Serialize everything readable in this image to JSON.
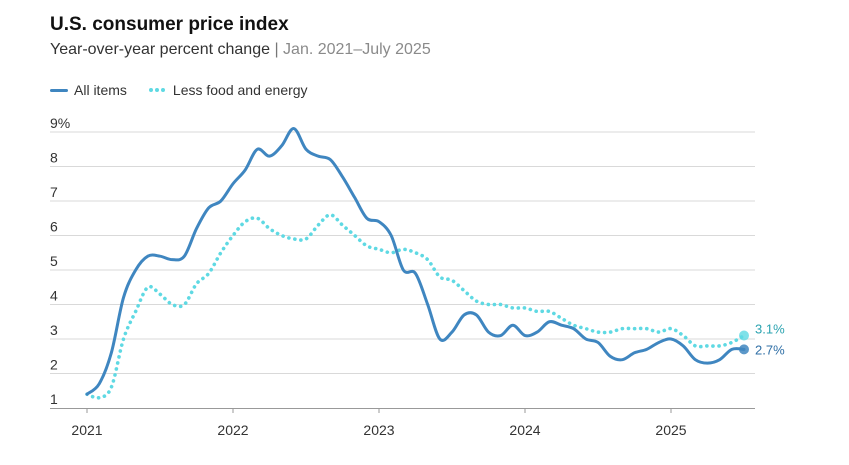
{
  "header": {
    "title": "U.S. consumer price index",
    "subtitle_main": "Year-over-year percent change",
    "subtitle_sep": "|",
    "subtitle_range": "Jan. 2021–July 2025"
  },
  "legend": {
    "all_items": "All items",
    "core": "Less food and energy"
  },
  "colors": {
    "all_items": "#3f86c0",
    "core": "#5fd9e3",
    "grid": "#d9d9d9",
    "axis": "#999999"
  },
  "end_labels": {
    "all_items": "2.7%",
    "core": "3.1%"
  },
  "chart_data": {
    "type": "line",
    "title": "U.S. consumer price index",
    "subtitle": "Year-over-year percent change | Jan. 2021–July 2025",
    "xlabel": "",
    "ylabel": "",
    "ylim": [
      1,
      9
    ],
    "x_ticks": [
      "2021",
      "2022",
      "2023",
      "2024",
      "2025"
    ],
    "y_ticks": [
      "1",
      "2",
      "3",
      "4",
      "5",
      "6",
      "7",
      "8",
      "9%"
    ],
    "x_start": "2021-01",
    "x_end": "2025-07",
    "grid": "horizontal",
    "legend_position": "top-left",
    "series": [
      {
        "name": "All items",
        "style": "solid",
        "values": [
          1.4,
          1.7,
          2.6,
          4.2,
          5.0,
          5.4,
          5.4,
          5.3,
          5.4,
          6.2,
          6.8,
          7.0,
          7.5,
          7.9,
          8.5,
          8.3,
          8.6,
          9.1,
          8.5,
          8.3,
          8.2,
          7.7,
          7.1,
          6.5,
          6.4,
          6.0,
          5.0,
          4.9,
          4.0,
          3.0,
          3.2,
          3.7,
          3.7,
          3.2,
          3.1,
          3.4,
          3.1,
          3.2,
          3.5,
          3.4,
          3.3,
          3.0,
          2.9,
          2.5,
          2.4,
          2.6,
          2.7,
          2.9,
          3.0,
          2.8,
          2.4,
          2.3,
          2.4,
          2.7,
          2.7
        ]
      },
      {
        "name": "Less food and energy",
        "style": "dotted",
        "values": [
          1.4,
          1.3,
          1.6,
          3.0,
          3.8,
          4.5,
          4.3,
          4.0,
          4.0,
          4.6,
          4.9,
          5.5,
          6.0,
          6.4,
          6.5,
          6.2,
          6.0,
          5.9,
          5.9,
          6.3,
          6.6,
          6.3,
          6.0,
          5.7,
          5.6,
          5.5,
          5.6,
          5.5,
          5.3,
          4.8,
          4.7,
          4.4,
          4.1,
          4.0,
          4.0,
          3.9,
          3.9,
          3.8,
          3.8,
          3.6,
          3.4,
          3.3,
          3.2,
          3.2,
          3.3,
          3.3,
          3.3,
          3.2,
          3.3,
          3.1,
          2.8,
          2.8,
          2.8,
          2.9,
          3.1
        ]
      }
    ]
  }
}
